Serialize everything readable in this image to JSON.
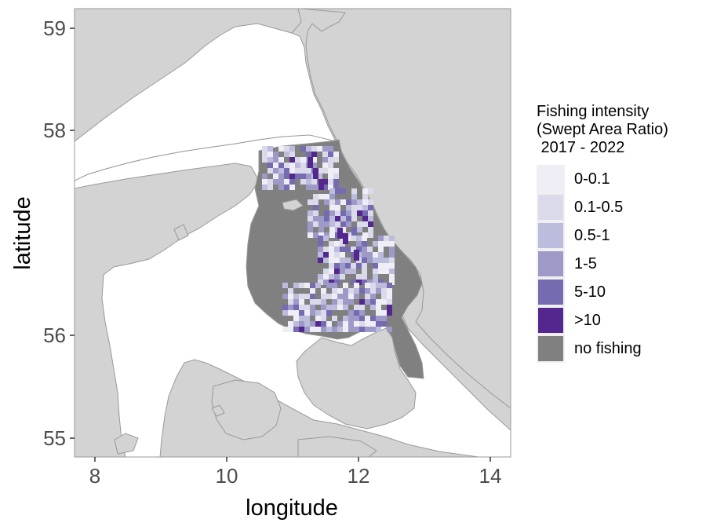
{
  "map": {
    "xlabel": "longitude",
    "ylabel": "latitude",
    "x_ticks": [
      "8",
      "10",
      "12",
      "14"
    ],
    "y_ticks": [
      "55",
      "56",
      "58",
      "59"
    ],
    "x_range": [
      7.8,
      14.3
    ],
    "y_range": [
      54.8,
      59.2
    ],
    "colors": {
      "land": "#d3d3d3",
      "sea": "#ffffff",
      "border": "#999999",
      "no_fishing": "#808080"
    }
  },
  "legend": {
    "title_lines": [
      "Fishing intensity",
      "(Swept Area Ratio)",
      " 2017 - 2022"
    ],
    "items": [
      {
        "label": "0-0.1",
        "color": "#efedf5"
      },
      {
        "label": "0.1-0.5",
        "color": "#dadaeb"
      },
      {
        "label": "0.5-1",
        "color": "#bcbddc"
      },
      {
        "label": "1-5",
        "color": "#9e9ac8"
      },
      {
        "label": "5-10",
        "color": "#756bb1"
      },
      {
        "label": ">10",
        "color": "#54278f"
      },
      {
        "label": "no fishing",
        "color": "#808080"
      }
    ]
  }
}
